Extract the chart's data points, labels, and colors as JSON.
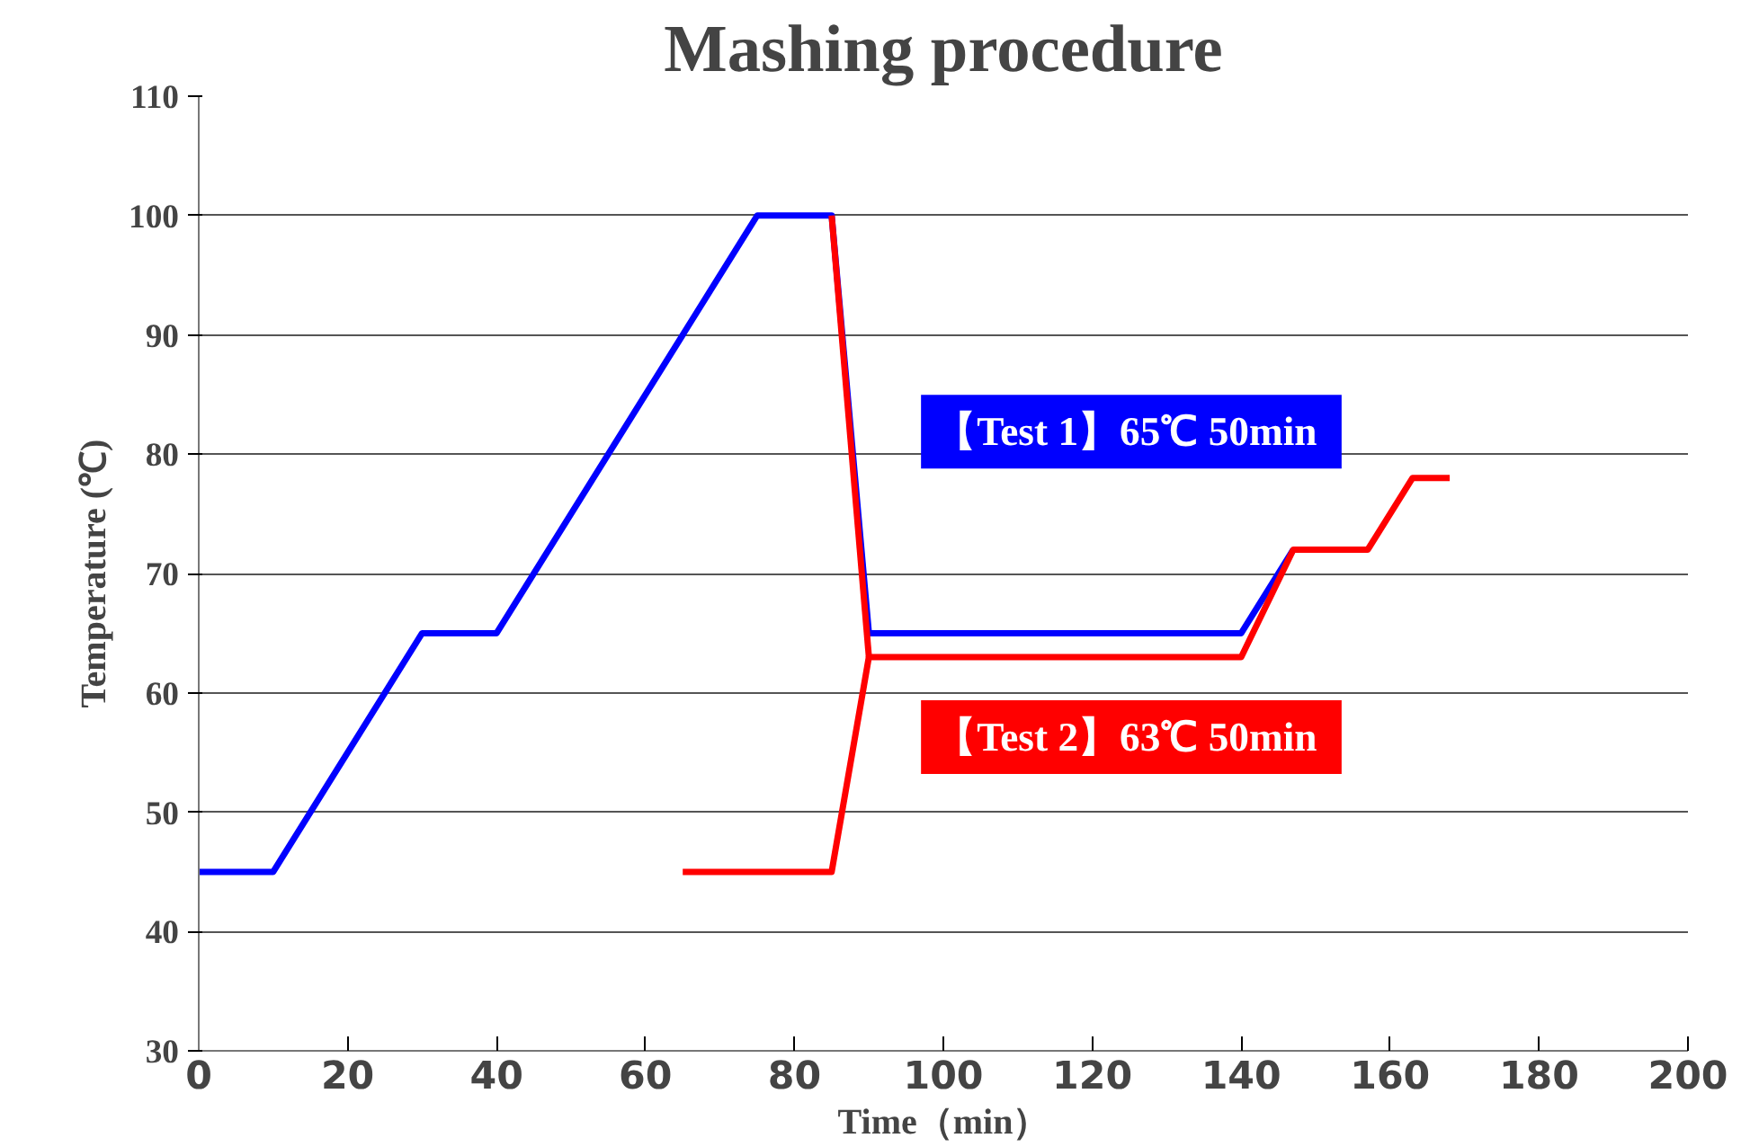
{
  "chart_data": {
    "type": "line",
    "title": "Mashing procedure",
    "xlabel": "Time（min）",
    "ylabel": "Temperature (℃)",
    "xlim": [
      0,
      200
    ],
    "xticks": [
      0,
      20,
      40,
      60,
      80,
      100,
      120,
      140,
      160,
      180,
      200
    ],
    "ylim": [
      30,
      110
    ],
    "yticks": [
      30,
      40,
      50,
      60,
      70,
      80,
      90,
      100,
      110
    ],
    "grid": "y",
    "legend": false,
    "marker": "none",
    "line_style": "solid",
    "series": [
      {
        "name": "【Test 1】65℃  50min",
        "color": "#0000ff",
        "x": [
          0,
          10,
          30,
          40,
          75,
          85,
          90,
          140,
          147
        ],
        "values": [
          45,
          45,
          65,
          65,
          100,
          100,
          65,
          65,
          72
        ]
      },
      {
        "name": "【Test 2】63℃  50min",
        "color": "#ff0000",
        "x": [
          65,
          85,
          90,
          140,
          147,
          157,
          163,
          168
        ],
        "values": [
          45,
          45,
          63,
          63,
          72,
          72,
          78,
          78
        ]
      },
      {
        "color": "#ff0000",
        "x": [
          85,
          90
        ],
        "values": [
          100,
          63
        ]
      }
    ]
  }
}
